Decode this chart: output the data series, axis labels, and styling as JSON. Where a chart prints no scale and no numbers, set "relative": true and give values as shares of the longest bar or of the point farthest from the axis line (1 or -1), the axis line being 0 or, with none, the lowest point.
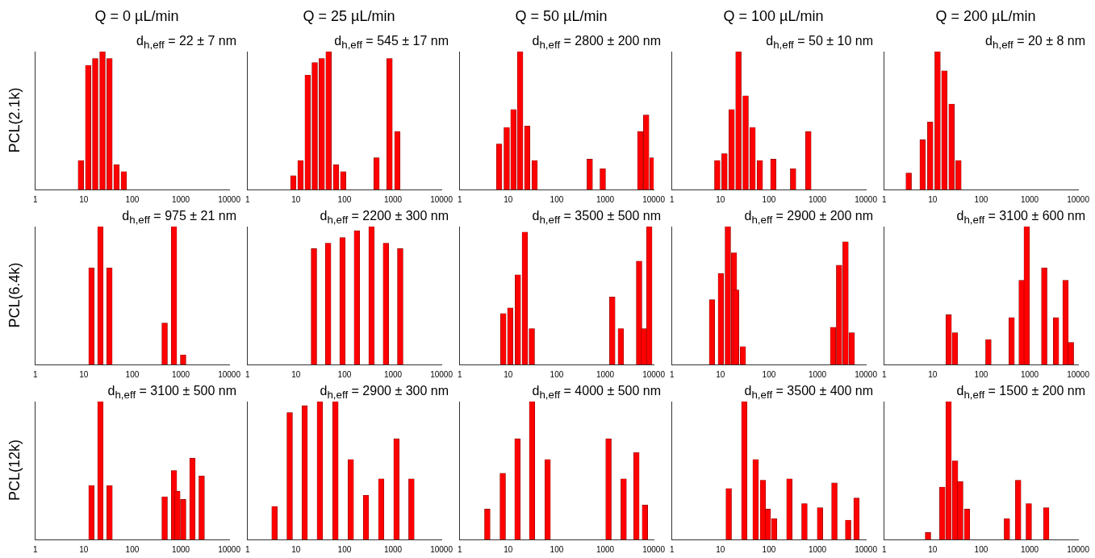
{
  "chart_data": [
    {
      "type": "bar",
      "title": "Q = 0 µL/min",
      "ylabel": "PCL(2.1k)",
      "annotations": [
        "d$_{h,eff}$ = 22 ± 7 nm"
      ],
      "x": [
        8.7,
        12.3,
        17.2,
        24.3,
        33.9,
        47.3,
        66.8
      ],
      "values": [
        0.21,
        0.9,
        0.95,
        1,
        0.95,
        0.18,
        0.13
      ],
      "color": "#ff0000",
      "relative": true,
      "log": "x",
      "xlim": [
        1,
        10000
      ],
      "xticks": [
        1,
        10,
        100,
        1000,
        10000
      ]
    },
    {
      "type": "bar",
      "title": "Q = 25 µL/min",
      "annotations": [
        "d$_{h,eff}$ = 545 ± 17 nm"
      ],
      "x": [
        8.8,
        12.4,
        17.4,
        24.3,
        34,
        47,
        67,
        94,
        458,
        850,
        1230
      ],
      "values": [
        0.1,
        0.21,
        0.83,
        0.92,
        0.95,
        1,
        0.18,
        0.13,
        0.23,
        0.95,
        0.42
      ],
      "color": "#ff0000",
      "relative": true,
      "log": "x",
      "xlim": [
        1,
        10000
      ],
      "xticks": [
        1,
        10,
        100,
        1000,
        10000
      ]
    },
    {
      "type": "bar",
      "title": "Q = 50 µL/min",
      "annotations": [
        "d$_{h,eff}$ = 2800 ± 200 nm"
      ],
      "x": [
        6.5,
        9.3,
        12.8,
        17.6,
        24.6,
        35,
        480,
        890,
        5300,
        7000,
        9500
      ],
      "values": [
        0.33,
        0.45,
        0.58,
        1,
        0.46,
        0.21,
        0.22,
        0.15,
        0.42,
        0.54,
        0.23
      ],
      "color": "#ff0000",
      "relative": true,
      "log": "x",
      "xlim": [
        1,
        10000
      ],
      "xticks": [
        1,
        10,
        100,
        1000,
        10000
      ]
    },
    {
      "type": "bar",
      "title": "Q = 100 µL/min",
      "annotations": [
        "d$_{h,eff}$ = 50 ± 10 nm"
      ],
      "x": [
        8.6,
        12.1,
        17,
        23.5,
        33,
        46,
        65,
        123,
        315,
        650
      ],
      "values": [
        0.21,
        0.26,
        0.58,
        1,
        0.68,
        0.45,
        0.21,
        0.22,
        0.15,
        0.42
      ],
      "color": "#ff0000",
      "relative": true,
      "log": "x",
      "xlim": [
        1,
        10000
      ],
      "xticks": [
        1,
        10,
        100,
        1000,
        10000
      ]
    },
    {
      "type": "bar",
      "title": "Q = 200 µL/min",
      "annotations": [
        "d$_{h,eff}$ = 20 ± 8 nm"
      ],
      "x": [
        3.2,
        6.2,
        8.9,
        12.6,
        17.4,
        24.5,
        34
      ],
      "values": [
        0.12,
        0.36,
        0.49,
        1,
        0.86,
        0.62,
        0.21
      ],
      "color": "#ff0000",
      "relative": true,
      "log": "x",
      "xlim": [
        1,
        10000
      ],
      "xticks": [
        1,
        10,
        100,
        1000,
        10000
      ]
    },
    {
      "type": "bar",
      "ylabel": "PCL(6.4k)",
      "annotations": [
        "d$_{h,eff}$ = 975 ± 21 nm"
      ],
      "x": [
        14.4,
        22,
        33.8,
        465,
        725,
        1120
      ],
      "values": [
        0.7,
        1,
        0.7,
        0.3,
        1,
        0.07
      ],
      "color": "#ff0000",
      "relative": true,
      "log": "x",
      "xlim": [
        1,
        10000
      ],
      "xticks": [
        1,
        10,
        100,
        1000,
        10000
      ]
    },
    {
      "type": "bar",
      "annotations": [
        "d$_{h,eff}$ = 2200 ± 300 nm"
      ],
      "x": [
        23.4,
        46,
        91,
        180,
        361,
        714,
        1410
      ],
      "values": [
        0.84,
        0.88,
        0.92,
        0.97,
        1,
        0.88,
        0.84
      ],
      "color": "#ff0000",
      "relative": true,
      "log": "x",
      "xlim": [
        1,
        10000
      ],
      "xticks": [
        1,
        10,
        100,
        1000,
        10000
      ]
    },
    {
      "type": "bar",
      "annotations": [
        "d$_{h,eff}$ = 3500 ± 500 nm"
      ],
      "x": [
        7.9,
        11,
        15.8,
        22,
        30.6,
        1400,
        2100,
        5000,
        6200,
        8100
      ],
      "values": [
        0.37,
        0.41,
        0.65,
        0.96,
        0.26,
        0.49,
        0.26,
        0.75,
        0.26,
        1
      ],
      "color": "#ff0000",
      "relative": true,
      "log": "x",
      "xlim": [
        1,
        10000
      ],
      "xticks": [
        1,
        10,
        100,
        1000,
        10000
      ]
    },
    {
      "type": "bar",
      "annotations": [
        "d$_{h,eff}$ = 2900 ± 200 nm"
      ],
      "x": [
        6.7,
        10.2,
        14.2,
        19,
        21,
        29,
        2100,
        2800,
        3800,
        5100
      ],
      "values": [
        0.47,
        0.66,
        1,
        0.81,
        0.54,
        0.13,
        0.27,
        0.72,
        0.89,
        0.23
      ],
      "color": "#ff0000",
      "relative": true,
      "log": "x",
      "xlim": [
        1,
        10000
      ],
      "xticks": [
        1,
        10,
        100,
        1000,
        10000
      ]
    },
    {
      "type": "bar",
      "annotations": [
        "d$_{h,eff}$ = 3100 ± 600 nm"
      ],
      "x": [
        21.4,
        28.8,
        141,
        425,
        684,
        870,
        2000,
        3500,
        5500,
        7100
      ],
      "values": [
        0.36,
        0.23,
        0.18,
        0.34,
        0.61,
        1,
        0.7,
        0.34,
        0.61,
        0.16
      ],
      "color": "#ff0000",
      "relative": true,
      "log": "x",
      "xlim": [
        1,
        10000
      ],
      "xticks": [
        1,
        10,
        100,
        1000,
        10000
      ]
    },
    {
      "type": "bar",
      "ylabel": "PCL(12k)",
      "annotations": [
        "d$_{h,eff}$ = 3100 ± 500 nm"
      ],
      "x": [
        14.4,
        22,
        34,
        465,
        725,
        850,
        1120,
        1740,
        2700
      ],
      "values": [
        0.39,
        1,
        0.39,
        0.31,
        0.5,
        0.35,
        0.29,
        0.59,
        0.46
      ],
      "color": "#ff0000",
      "relative": true,
      "log": "x",
      "xlim": [
        1,
        10000
      ],
      "xticks": [
        1,
        10,
        100,
        1000,
        10000
      ]
    },
    {
      "type": "bar",
      "annotations": [
        "d$_{h,eff}$ = 2900 ± 300 nm"
      ],
      "x": [
        3.6,
        7.4,
        15.1,
        31,
        65,
        135,
        277,
        571,
        1180,
        2400
      ],
      "values": [
        0.24,
        0.92,
        0.97,
        1,
        1,
        0.58,
        0.32,
        0.44,
        0.73,
        0.44
      ],
      "color": "#ff0000",
      "relative": true,
      "log": "x",
      "xlim": [
        1,
        10000
      ],
      "xticks": [
        1,
        10,
        100,
        1000,
        10000
      ]
    },
    {
      "type": "bar",
      "annotations": [
        "d$_{h,eff}$ = 4000 ± 500 nm"
      ],
      "x": [
        3.7,
        7.7,
        15.5,
        31,
        65,
        1170,
        2400,
        4400,
        6600
      ],
      "values": [
        0.22,
        0.48,
        0.73,
        1,
        0.58,
        0.73,
        0.44,
        0.63,
        0.25
      ],
      "color": "#ff0000",
      "relative": true,
      "log": "x",
      "xlim": [
        1,
        10000
      ],
      "xticks": [
        1,
        10,
        100,
        1000,
        10000
      ]
    },
    {
      "type": "bar",
      "annotations": [
        "d$_{h,eff}$ = 3500 ± 400 nm"
      ],
      "x": [
        14.8,
        31,
        53,
        75,
        95,
        128,
        264,
        540,
        1130,
        2240,
        4300,
        6400
      ],
      "values": [
        0.37,
        1,
        0.58,
        0.43,
        0.22,
        0.15,
        0.44,
        0.26,
        0.23,
        0.41,
        0.14,
        0.3
      ],
      "color": "#ff0000",
      "relative": true,
      "log": "x",
      "xlim": [
        1,
        10000
      ],
      "xticks": [
        1,
        10,
        100,
        1000,
        10000
      ]
    },
    {
      "type": "bar",
      "annotations": [
        "d$_{h,eff}$ = 1500 ± 200 nm"
      ],
      "x": [
        8,
        15.8,
        21.3,
        29,
        37,
        51,
        340,
        580,
        960,
        2200
      ],
      "values": [
        0.05,
        0.38,
        1,
        0.57,
        0.42,
        0.22,
        0.15,
        0.43,
        0.26,
        0.23
      ],
      "color": "#ff0000",
      "relative": true,
      "log": "x",
      "xlim": [
        1,
        10000
      ],
      "xticks": [
        1,
        10,
        100,
        1000,
        10000
      ]
    }
  ]
}
